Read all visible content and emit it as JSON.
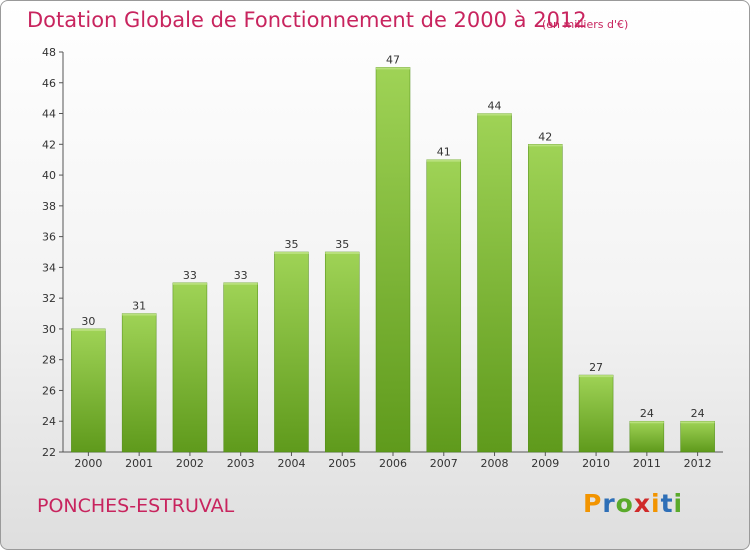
{
  "title": "Dotation Globale de Fonctionnement de 2000 à 2012",
  "subtitle": "(en milliers d'€)",
  "commune": "PONCHES-ESTRUVAL",
  "logo": {
    "letters": [
      "P",
      "r",
      "o",
      "x",
      "i",
      "t",
      "i"
    ],
    "colors": [
      "#f29400",
      "#2e6fb7",
      "#5aaa2b",
      "#d02a2a",
      "#f29400",
      "#2e6fb7",
      "#5aaa2b"
    ]
  },
  "colors": {
    "bar_top": "#9fd356",
    "bar_bottom": "#5f9a1c",
    "text_accent": "#c8245e"
  },
  "chart_data": {
    "type": "bar",
    "categories": [
      "2000",
      "2001",
      "2002",
      "2003",
      "2004",
      "2005",
      "2006",
      "2007",
      "2008",
      "2009",
      "2010",
      "2011",
      "2012"
    ],
    "values": [
      30,
      31,
      33,
      33,
      35,
      35,
      47,
      41,
      44,
      42,
      27,
      24,
      24
    ],
    "ylim": [
      22,
      48
    ],
    "yticks": [
      22,
      24,
      26,
      28,
      30,
      32,
      34,
      36,
      38,
      40,
      42,
      44,
      46,
      48
    ],
    "grid": false,
    "xlabel": "",
    "ylabel": ""
  }
}
